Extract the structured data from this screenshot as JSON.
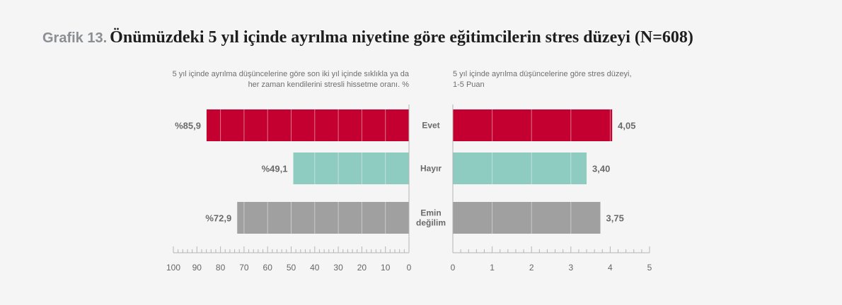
{
  "title_prefix": "Grafik 13.",
  "title": "Önümüzdeki 5 yıl içinde ayrılma niyetine göre eğitimcilerin stres düzeyi (N=608)",
  "colors": {
    "evet": "#c3002f",
    "hayir": "#8ecbc0",
    "emin": "#a0a0a0",
    "axis": "#b5b5b5",
    "tick_text": "#666666",
    "value_text": "#6a6a6a"
  },
  "chart_data": [
    {
      "type": "bar",
      "orientation": "horizontal",
      "direction": "right-to-left",
      "title": "5 yıl içinde ayrılma düşüncelerine göre son iki yıl içinde sıklıkla ya da her zaman kendilerini stresli hissetme oranı. %",
      "title_lines": [
        "5 yıl içinde ayrılma düşüncelerine göre son iki yıl içinde sıklıkla ya da",
        "her zaman kendilerini stresli hissetme oranı. %"
      ],
      "categories": [
        "Evet",
        "Hayır",
        "Emin değilim"
      ],
      "category_lines": [
        [
          "Evet"
        ],
        [
          "Hayır"
        ],
        [
          "Emin",
          "değilim"
        ]
      ],
      "values": [
        85.9,
        49.1,
        72.9
      ],
      "value_labels": [
        "%85,9",
        "%49,1",
        "%72,9"
      ],
      "xlim": [
        0,
        100
      ],
      "ticks": [
        100,
        90,
        80,
        70,
        60,
        50,
        40,
        30,
        20,
        10,
        0
      ],
      "tick_labels": [
        "100",
        "90",
        "80",
        "70",
        "60",
        "50",
        "40",
        "30",
        "20",
        "10",
        "0"
      ]
    },
    {
      "type": "bar",
      "orientation": "horizontal",
      "direction": "left-to-right",
      "title": "5 yıl içinde ayrılma düşüncelerine göre stres düzeyi, 1-5 Puan",
      "title_lines": [
        "5 yıl içinde ayrılma düşüncelerine göre stres düzeyi,",
        "1-5 Puan"
      ],
      "categories": [
        "Evet",
        "Hayır",
        "Emin değilim"
      ],
      "values": [
        4.05,
        3.4,
        3.75
      ],
      "value_labels": [
        "4,05",
        "3,40",
        "3,75"
      ],
      "xlim": [
        0,
        5
      ],
      "ticks": [
        0,
        1,
        2,
        3,
        4,
        5
      ],
      "tick_labels": [
        "0",
        "1",
        "2",
        "3",
        "4",
        "5"
      ]
    }
  ]
}
